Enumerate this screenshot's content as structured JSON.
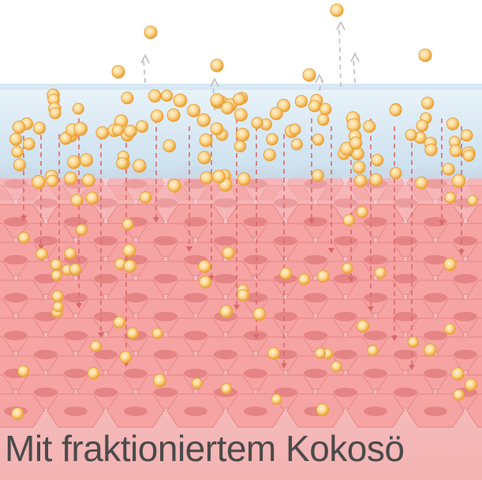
{
  "caption": "Mit fraktioniertem Kokosö",
  "colors": {
    "background": "#ffffff",
    "skin_surface": "#cfe2f0",
    "skin_surface_edge": "#9ec3dd",
    "cell_fill": "#f6a3a3",
    "cell_stroke": "#e88c8c",
    "nucleus": "#e07f80",
    "droplet_outer": "#f0b040",
    "droplet_inner": "#fde3b0",
    "arrow": "#d96a6a",
    "arrow_up": "#bdbdbd",
    "caption_text": "#4a4a4a"
  },
  "icons": [
    "oil-droplet-icon",
    "penetration-arrow-icon",
    "evaporation-arrow-icon",
    "skin-cell-icon"
  ]
}
